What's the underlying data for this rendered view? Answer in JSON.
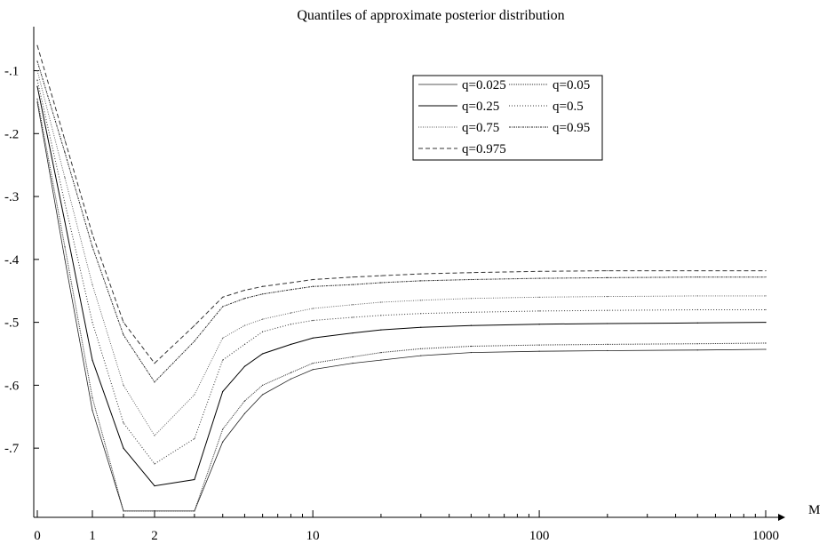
{
  "chart_data": {
    "type": "line",
    "title": "Quantiles of approximate posterior distribution",
    "xlabel": "M",
    "ylabel": "",
    "x_scale": "piecewise: linear from 0 to 2, logarithmic from 2 to 1000",
    "xlim": [
      0,
      1000
    ],
    "ylim": [
      -0.81,
      -0.03
    ],
    "x_ticks": [
      0,
      1,
      2,
      10,
      100,
      1000
    ],
    "x_tick_labels": [
      "0",
      "1",
      "2",
      "10",
      "100",
      "1000"
    ],
    "y_ticks": [
      -0.1,
      -0.2,
      -0.3,
      -0.4,
      -0.5,
      -0.6,
      -0.7
    ],
    "y_tick_labels": [
      "-.1",
      "-.2",
      "-.3",
      "-.4",
      "-.5",
      "-.6",
      "-.7"
    ],
    "grid": false,
    "legend_position": "top-right",
    "x": [
      0,
      0.5,
      1,
      1.5,
      2,
      3,
      4,
      5,
      6,
      8,
      10,
      15,
      20,
      30,
      50,
      100,
      200,
      500,
      1000
    ],
    "series": [
      {
        "name": "q=0.025",
        "style": "solid-thin",
        "values": [
          -0.15,
          -0.4,
          -0.64,
          -0.8,
          -0.8,
          -0.8,
          -0.69,
          -0.645,
          -0.615,
          -0.59,
          -0.575,
          -0.565,
          -0.56,
          -0.553,
          -0.548,
          -0.546,
          -0.545,
          -0.544,
          -0.543
        ]
      },
      {
        "name": "q=0.05",
        "style": "dotted-dense",
        "values": [
          -0.145,
          -0.38,
          -0.62,
          -0.8,
          -0.8,
          -0.8,
          -0.67,
          -0.625,
          -0.6,
          -0.58,
          -0.565,
          -0.555,
          -0.548,
          -0.542,
          -0.538,
          -0.536,
          -0.535,
          -0.534,
          -0.533
        ]
      },
      {
        "name": "q=0.25",
        "style": "solid",
        "values": [
          -0.125,
          -0.34,
          -0.56,
          -0.7,
          -0.76,
          -0.75,
          -0.61,
          -0.57,
          -0.55,
          -0.535,
          -0.525,
          -0.517,
          -0.512,
          -0.508,
          -0.505,
          -0.503,
          -0.502,
          -0.501,
          -0.5
        ]
      },
      {
        "name": "q=0.5",
        "style": "dotted",
        "values": [
          -0.115,
          -0.31,
          -0.5,
          -0.66,
          -0.725,
          -0.685,
          -0.56,
          -0.535,
          -0.515,
          -0.503,
          -0.497,
          -0.492,
          -0.489,
          -0.486,
          -0.484,
          -0.482,
          -0.481,
          -0.48,
          -0.48
        ]
      },
      {
        "name": "q=0.75",
        "style": "dotted-fine",
        "values": [
          -0.1,
          -0.27,
          -0.44,
          -0.6,
          -0.68,
          -0.615,
          -0.525,
          -0.505,
          -0.495,
          -0.485,
          -0.478,
          -0.472,
          -0.468,
          -0.465,
          -0.462,
          -0.46,
          -0.459,
          -0.458,
          -0.458
        ]
      },
      {
        "name": "q=0.95",
        "style": "dash-dot-fine",
        "values": [
          -0.085,
          -0.23,
          -0.38,
          -0.52,
          -0.595,
          -0.53,
          -0.475,
          -0.462,
          -0.455,
          -0.448,
          -0.443,
          -0.44,
          -0.437,
          -0.434,
          -0.432,
          -0.43,
          -0.429,
          -0.428,
          -0.428
        ]
      },
      {
        "name": "q=0.975",
        "style": "dashed",
        "values": [
          -0.06,
          -0.21,
          -0.36,
          -0.5,
          -0.565,
          -0.505,
          -0.46,
          -0.449,
          -0.443,
          -0.437,
          -0.432,
          -0.428,
          -0.426,
          -0.423,
          -0.421,
          -0.419,
          -0.418,
          -0.418,
          -0.418
        ]
      }
    ]
  }
}
